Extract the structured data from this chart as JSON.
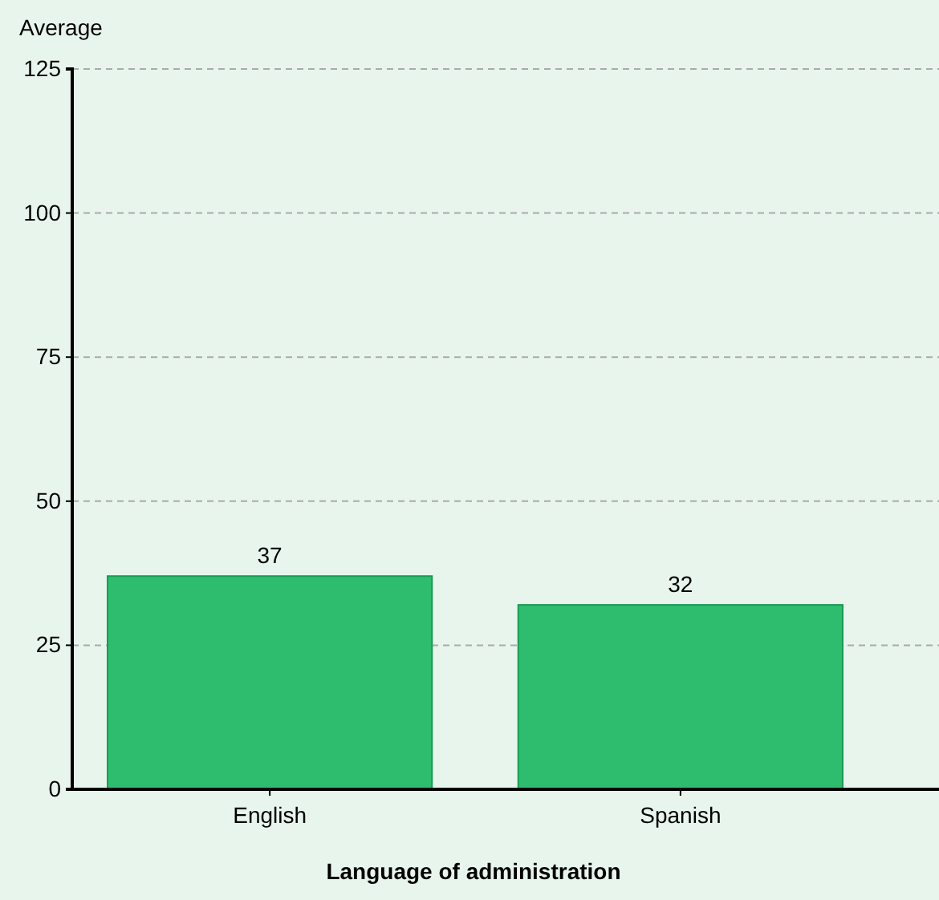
{
  "chart_data": {
    "type": "bar",
    "categories": [
      "English",
      "Spanish"
    ],
    "values": [
      37,
      32
    ],
    "color": "#2ebd6e",
    "ylabel": "Average",
    "xlabel": "Language of administration",
    "ylim": [
      0,
      125
    ],
    "yticks": [
      0,
      25,
      50,
      75,
      100,
      125
    ],
    "grid": "y",
    "data_labels": true
  }
}
